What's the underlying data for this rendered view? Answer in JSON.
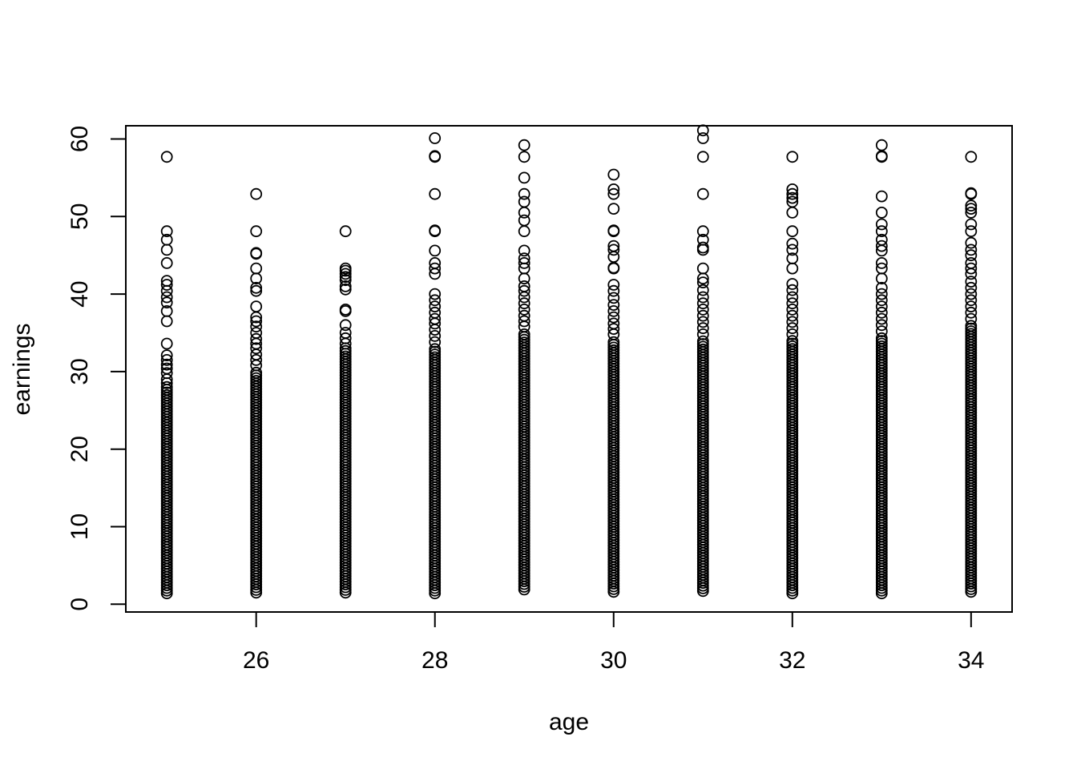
{
  "chart_data": {
    "type": "scatter",
    "title": "",
    "xlabel": "age",
    "ylabel": "earnings",
    "xlim": [
      24.55,
      34.45
    ],
    "ylim": [
      -0.9,
      61.6
    ],
    "x_ticks": [
      26,
      28,
      30,
      32,
      34
    ],
    "y_ticks": [
      0,
      10,
      20,
      30,
      40,
      50,
      60
    ],
    "grid": false,
    "legend": "none",
    "point_style": "open-circle",
    "point_color": "#000000",
    "series": [
      {
        "columns": [
          {
            "x": 25,
            "dense": [
              1.4,
              28.0
            ],
            "extra": [
              28.5,
              29.0,
              29.8,
              30.4,
              30.9,
              31.5,
              32.1,
              33.6,
              36.5,
              37.8,
              38.9,
              39.6,
              40.4,
              41.2,
              41.7,
              44.0,
              45.7,
              47.0,
              48.1,
              57.7
            ]
          },
          {
            "x": 26,
            "dense": [
              1.5,
              30.0
            ],
            "extra": [
              30.8,
              31.5,
              32.2,
              33.0,
              33.6,
              34.2,
              35.0,
              35.8,
              36.5,
              37.0,
              38.4,
              40.4,
              40.8,
              42.0,
              43.3,
              45.2,
              45.3,
              48.1,
              52.9
            ]
          },
          {
            "x": 27,
            "dense": [
              1.5,
              33.0
            ],
            "extra": [
              33.6,
              34.3,
              35.0,
              36.0,
              37.8,
              38.0,
              40.6,
              41.0,
              41.8,
              42.2,
              42.6,
              43.0,
              43.3,
              48.1
            ]
          },
          {
            "x": 28,
            "dense": [
              1.4,
              33.0
            ],
            "extra": [
              33.8,
              34.6,
              35.4,
              36.2,
              36.8,
              37.6,
              38.4,
              39.2,
              40.0,
              42.6,
              43.3,
              44.0,
              45.6,
              48.1,
              48.2,
              52.9,
              57.7,
              57.8,
              60.1
            ]
          },
          {
            "x": 29,
            "dense": [
              1.9,
              35.0
            ],
            "extra": [
              35.8,
              36.5,
              37.2,
              38.0,
              38.8,
              39.6,
              40.4,
              41.0,
              42.0,
              43.3,
              44.0,
              44.6,
              45.6,
              48.1,
              49.5,
              50.5,
              51.9,
              52.9,
              55.0,
              57.7,
              59.2
            ]
          },
          {
            "x": 30,
            "dense": [
              1.6,
              34.0
            ],
            "extra": [
              34.8,
              35.5,
              36.2,
              37.0,
              37.8,
              38.6,
              39.5,
              40.4,
              41.2,
              43.3,
              43.4,
              44.8,
              45.7,
              46.2,
              48.1,
              48.2,
              51.0,
              52.9,
              53.5,
              55.4
            ]
          },
          {
            "x": 31,
            "dense": [
              1.7,
              34.0
            ],
            "extra": [
              34.8,
              35.6,
              36.4,
              37.2,
              38.0,
              38.8,
              39.6,
              40.5,
              41.5,
              42.0,
              43.3,
              45.7,
              46.0,
              47.0,
              48.1,
              52.9,
              57.7,
              60.1,
              61.1
            ]
          },
          {
            "x": 32,
            "dense": [
              1.4,
              34.0
            ],
            "extra": [
              34.8,
              35.6,
              36.4,
              37.2,
              38.0,
              38.8,
              39.6,
              40.5,
              41.3,
              43.3,
              44.6,
              45.7,
              46.5,
              48.1,
              50.5,
              51.9,
              52.4,
              52.9,
              53.5,
              57.7
            ]
          },
          {
            "x": 33,
            "dense": [
              1.4,
              34.5
            ],
            "extra": [
              35.2,
              36.0,
              36.8,
              37.6,
              38.4,
              39.2,
              40.0,
              40.8,
              42.0,
              43.3,
              44.0,
              45.6,
              46.2,
              47.0,
              48.1,
              49.0,
              50.5,
              52.6,
              57.7,
              57.8,
              59.2
            ]
          },
          {
            "x": 34,
            "dense": [
              1.6,
              36.0
            ],
            "extra": [
              36.8,
              37.6,
              38.4,
              39.2,
              40.0,
              40.8,
              41.6,
              42.6,
              43.3,
              44.0,
              45.0,
              45.7,
              46.6,
              48.1,
              49.0,
              50.5,
              51.0,
              51.4,
              52.9,
              53.0,
              57.7
            ]
          }
        ]
      }
    ]
  }
}
